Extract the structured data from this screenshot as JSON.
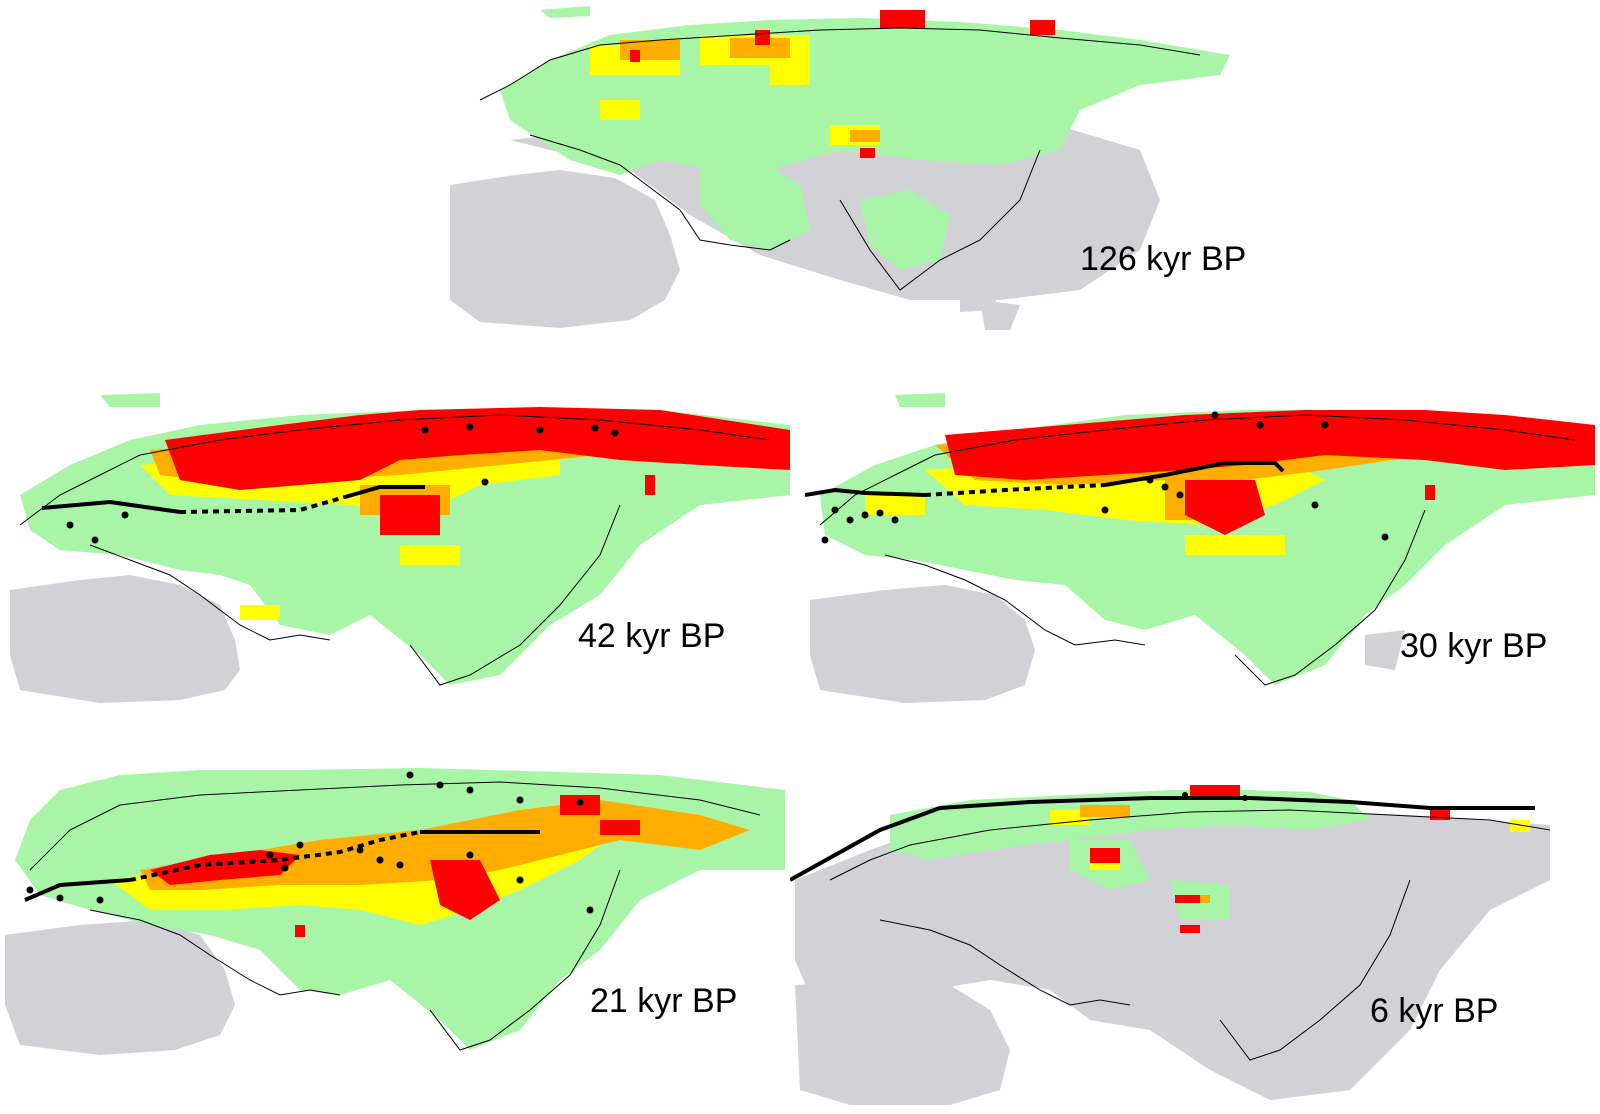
{
  "figure": {
    "colors": {
      "background": "#ffffff",
      "non_habitat": "#d2d2d6",
      "low_suitability": "#a8f5a8",
      "medium_suitability": "#ffff00",
      "high_suitability": "#ffae00",
      "highest_suitability": "#ff0000",
      "coastline": "#000000",
      "range_line": "#000000",
      "fossil_site": "#000000"
    },
    "panels": [
      {
        "id": "p126",
        "label": "126 kyr BP"
      },
      {
        "id": "p42",
        "label": "42 kyr BP"
      },
      {
        "id": "p30",
        "label": "30 kyr BP"
      },
      {
        "id": "p21",
        "label": "21 kyr BP"
      },
      {
        "id": "p6",
        "label": "6 kyr BP"
      }
    ]
  }
}
